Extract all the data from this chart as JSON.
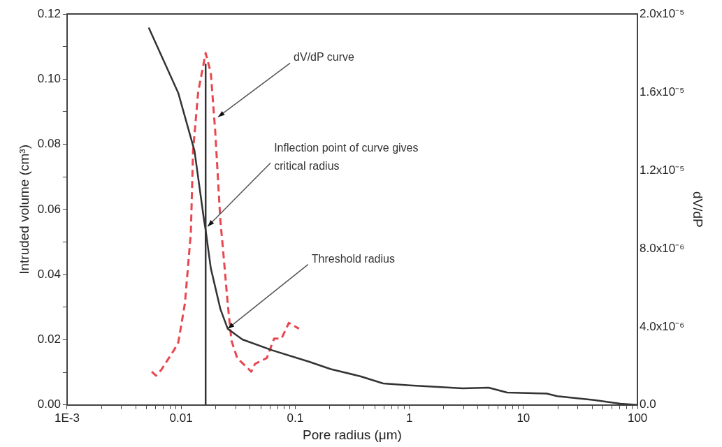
{
  "chart_data": {
    "type": "line",
    "xlabel": "Pore radius (μm)",
    "ylabel": "Intruded volume (cm³)",
    "y2label": "dV/dP",
    "log": "x",
    "marker": "none",
    "xlim": [
      0.001,
      100
    ],
    "xticks": [
      {
        "value": 0.001,
        "label": "1E-3"
      },
      {
        "value": 0.002,
        "label": null
      },
      {
        "value": 0.003,
        "label": null
      },
      {
        "value": 0.004,
        "label": null
      },
      {
        "value": 0.005,
        "label": null
      },
      {
        "value": 0.006,
        "label": null
      },
      {
        "value": 0.007,
        "label": null
      },
      {
        "value": 0.008,
        "label": null
      },
      {
        "value": 0.009,
        "label": null
      },
      0.01,
      {
        "value": 0.02,
        "label": null
      },
      {
        "value": 0.03,
        "label": null
      },
      {
        "value": 0.04,
        "label": null
      },
      {
        "value": 0.05,
        "label": null
      },
      {
        "value": 0.06,
        "label": null
      },
      {
        "value": 0.07,
        "label": null
      },
      {
        "value": 0.08,
        "label": null
      },
      {
        "value": 0.09,
        "label": null
      },
      0.1,
      {
        "value": 0.2,
        "label": null
      },
      {
        "value": 0.3,
        "label": null
      },
      {
        "value": 0.4,
        "label": null
      },
      {
        "value": 0.5,
        "label": null
      },
      {
        "value": 0.6,
        "label": null
      },
      {
        "value": 0.7,
        "label": null
      },
      {
        "value": 0.8,
        "label": null
      },
      {
        "value": 0.9,
        "label": null
      },
      1,
      {
        "value": 2,
        "label": null
      },
      {
        "value": 3,
        "label": null
      },
      {
        "value": 4,
        "label": null
      },
      {
        "value": 5,
        "label": null
      },
      {
        "value": 6,
        "label": null
      },
      {
        "value": 7,
        "label": null
      },
      {
        "value": 8,
        "label": null
      },
      {
        "value": 9,
        "label": null
      },
      10,
      {
        "value": 20,
        "label": null
      },
      {
        "value": 30,
        "label": null
      },
      {
        "value": 40,
        "label": null
      },
      {
        "value": 50,
        "label": null
      },
      {
        "value": 60,
        "label": null
      },
      {
        "value": 70,
        "label": null
      },
      {
        "value": 80,
        "label": null
      },
      {
        "value": 90,
        "label": null
      },
      100
    ],
    "ylim": [
      0,
      0.12
    ],
    "yticks": [
      {
        "value": 0,
        "label": "0.00"
      },
      {
        "value": 0.01,
        "label": null
      },
      {
        "value": 0.02,
        "label": "0.02"
      },
      {
        "value": 0.03,
        "label": null
      },
      {
        "value": 0.04,
        "label": "0.04"
      },
      {
        "value": 0.05,
        "label": null
      },
      {
        "value": 0.06,
        "label": "0.06"
      },
      {
        "value": 0.07,
        "label": null
      },
      {
        "value": 0.08,
        "label": "0.08"
      },
      {
        "value": 0.09,
        "label": null
      },
      {
        "value": 0.1,
        "label": "0.10"
      },
      {
        "value": 0.11,
        "label": null
      },
      {
        "value": 0.12,
        "label": "0.12"
      }
    ],
    "y2lim": [
      0,
      2e-05
    ],
    "y2ticks": [
      {
        "value": 0,
        "label": "0.0"
      },
      {
        "value": 4e-06,
        "label": "4.0x10⁻⁶"
      },
      {
        "value": 8e-06,
        "label": "8.0x10⁻⁶"
      },
      {
        "value": 1.2e-05,
        "label": "1.2x10⁻⁵"
      },
      {
        "value": 1.6e-05,
        "label": "1.6x10⁻⁵"
      },
      {
        "value": 2e-05,
        "label": "2.0x10⁻⁵"
      }
    ],
    "series": [
      {
        "color": "#333333",
        "x": [
          0.0052,
          0.00945,
          0.0131,
          0.0159,
          0.0164,
          0.0182,
          0.0221,
          0.0256,
          0.0344,
          0.0625,
          0.1315,
          0.205,
          0.372,
          0.59,
          1.01,
          2.94,
          4.95,
          7.2,
          16,
          19.8,
          41.6,
          70.8,
          100
        ],
        "values": [
          0.1158,
          0.0957,
          0.078,
          0.0566,
          0.0537,
          0.042,
          0.0294,
          0.0234,
          0.0201,
          0.0168,
          0.0133,
          0.011,
          0.0088,
          0.0066,
          0.006,
          0.0051,
          0.0053,
          0.0038,
          0.0035,
          0.0027,
          0.0015,
          0.0004,
          0
        ]
      },
      {
        "color": "#e8474f",
        "axis": "y2",
        "line_style": "dashed",
        "x": [
          0.00553,
          0.00603,
          0.00671,
          0.00865,
          0.00945,
          0.0108,
          0.01217,
          0.01273,
          0.0141,
          0.0164,
          0.0182,
          0.0199,
          0.0221,
          0.0231,
          0.0256,
          0.0276,
          0.031,
          0.0412,
          0.0444,
          0.0563,
          0.0654,
          0.0759,
          0.088,
          0.108
        ],
        "values": [
          1.7e-06,
          1.5e-06,
          1.8e-06,
          2.8e-06,
          3.2e-06,
          5.2e-06,
          8.8e-06,
          1.3e-05,
          1.6e-05,
          1.8e-05,
          1.7e-05,
          1.4e-05,
          9.4e-06,
          8.2e-06,
          5.2e-06,
          3.3e-06,
          2.4e-06,
          1.7e-06,
          2.1e-06,
          2.4e-06,
          3.4e-06,
          3.4e-06,
          4.2e-06,
          3.9e-06
        ]
      },
      {
        "color": "#333333",
        "x": [
          0.0164,
          0.0164
        ],
        "values": [
          0.1045,
          0
        ]
      }
    ],
    "annotations": [
      {
        "text": "dV/dP curve",
        "x": 0.0211,
        "y": 0.0884
      },
      {
        "text": "Inflection point of curve gives critical radius",
        "x": 0.0171,
        "y": 0.0548
      },
      {
        "text": "Threshold radius",
        "x": 0.0256,
        "y": 0.0234
      }
    ]
  }
}
